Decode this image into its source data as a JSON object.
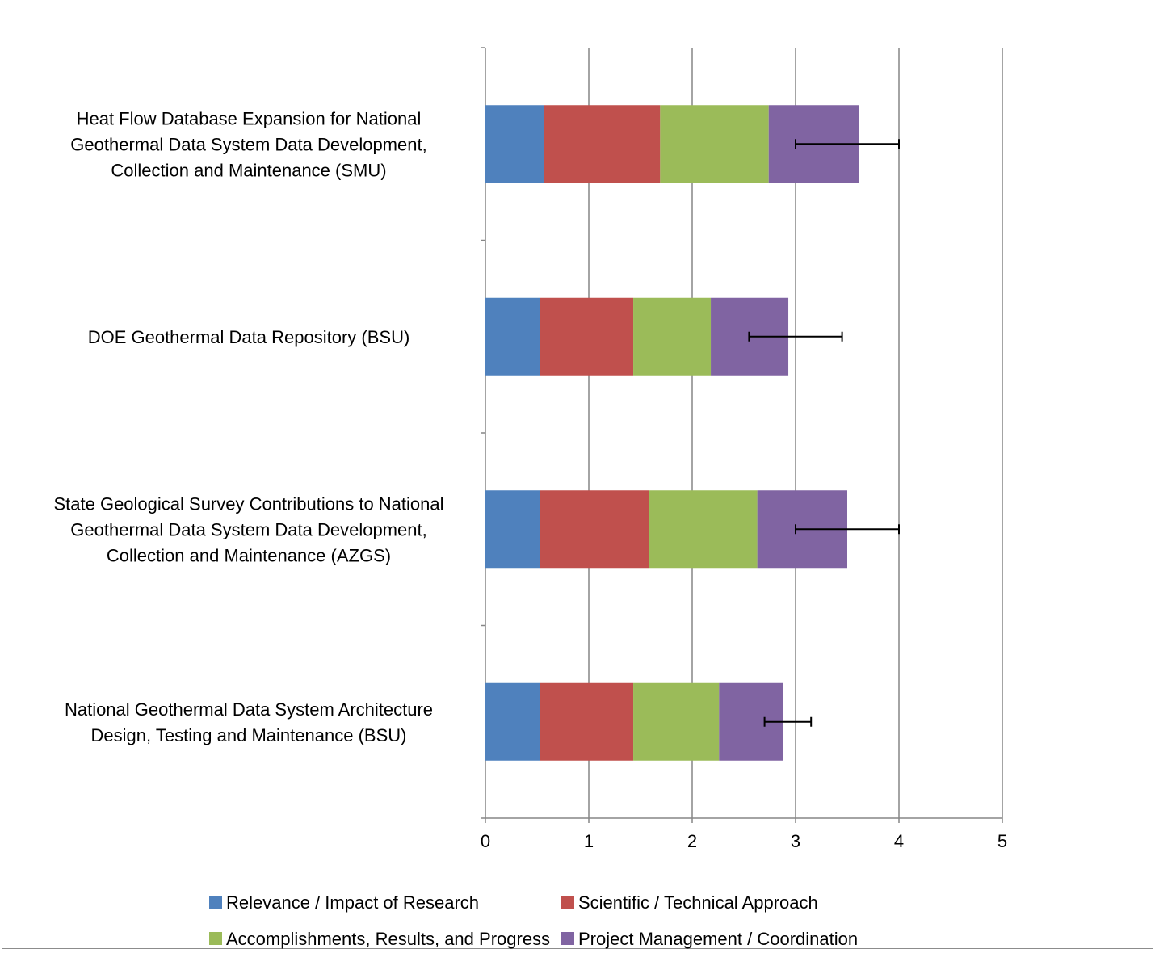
{
  "chart_data": {
    "type": "bar",
    "orientation": "horizontal",
    "stacked": true,
    "title": "",
    "xlabel": "",
    "ylabel": "",
    "xlim": [
      0,
      5
    ],
    "xticks": [
      "0",
      "1",
      "2",
      "3",
      "4",
      "5"
    ],
    "grid": "vertical",
    "legend_position": "bottom",
    "categories": [
      [
        "Heat Flow Database Expansion for National",
        "Geothermal Data System Data Development,",
        "Collection and Maintenance (SMU)"
      ],
      [
        "DOE Geothermal Data Repository (BSU)"
      ],
      [
        "State Geological Survey Contributions to National",
        "Geothermal Data System Data Development,",
        "Collection and Maintenance (AZGS)"
      ],
      [
        "National Geothermal Data System Architecture",
        "Design, Testing and Maintenance (BSU)"
      ]
    ],
    "series": [
      {
        "name": "Relevance / Impact of Research",
        "color": "#4f81bd",
        "values": [
          0.57,
          0.53,
          0.53,
          0.53
        ]
      },
      {
        "name": "Scientific / Technical Approach",
        "color": "#c0504d",
        "values": [
          1.12,
          0.9,
          1.05,
          0.9
        ]
      },
      {
        "name": "Accomplishments, Results, and Progress",
        "color": "#9bbb59",
        "values": [
          1.05,
          0.75,
          1.05,
          0.83
        ]
      },
      {
        "name": "Project Management / Coordination",
        "color": "#8064a2",
        "values": [
          0.87,
          0.75,
          0.87,
          0.62
        ]
      }
    ],
    "error_bars": [
      {
        "low": 3.0,
        "high": 4.0
      },
      {
        "low": 2.55,
        "high": 3.45
      },
      {
        "low": 3.0,
        "high": 4.0
      },
      {
        "low": 2.7,
        "high": 3.15
      }
    ]
  }
}
